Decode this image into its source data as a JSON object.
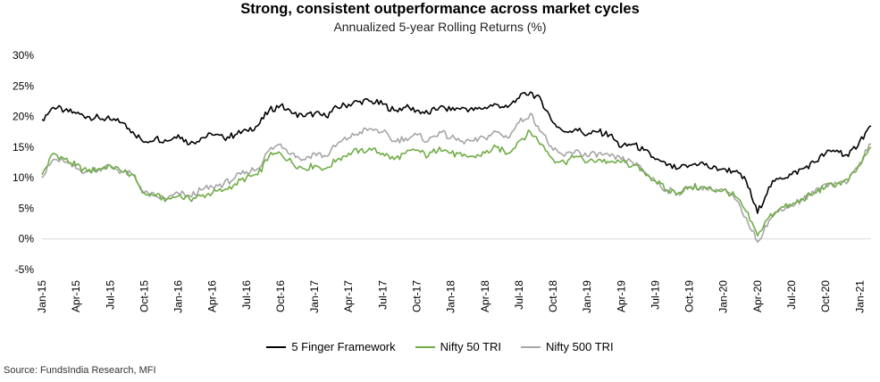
{
  "chart_data": {
    "type": "line",
    "title": "Strong, consistent  outperformance across market cycles",
    "subtitle": "Annualized 5-year Rolling Returns (%)",
    "source": "Source: FundsIndia Research, MFI",
    "ylim": [
      -5,
      30
    ],
    "y_ticks": [
      -5,
      0,
      5,
      10,
      15,
      20,
      25,
      30
    ],
    "y_tick_labels": [
      "-5%",
      "0%",
      "5%",
      "10%",
      "15%",
      "20%",
      "25%",
      "30%"
    ],
    "x_tick_labels": [
      "Jan-15",
      "Apr-15",
      "Jul-15",
      "Oct-15",
      "Jan-16",
      "Apr-16",
      "Jul-16",
      "Oct-16",
      "Jan-17",
      "Apr-17",
      "Jul-17",
      "Oct-17",
      "Jan-18",
      "Apr-18",
      "Jul-18",
      "Oct-18",
      "Jan-19",
      "Apr-19",
      "Jul-19",
      "Oct-19",
      "Jan-20",
      "Apr-20",
      "Jul-20",
      "Oct-20",
      "Jan-21"
    ],
    "legend_position": "bottom",
    "grid": false,
    "x": [
      "Jan-15",
      "Feb-15",
      "Mar-15",
      "Apr-15",
      "May-15",
      "Jun-15",
      "Jul-15",
      "Aug-15",
      "Sep-15",
      "Oct-15",
      "Nov-15",
      "Dec-15",
      "Jan-16",
      "Feb-16",
      "Mar-16",
      "Apr-16",
      "May-16",
      "Jun-16",
      "Jul-16",
      "Aug-16",
      "Sep-16",
      "Oct-16",
      "Nov-16",
      "Dec-16",
      "Jan-17",
      "Feb-17",
      "Mar-17",
      "Apr-17",
      "May-17",
      "Jun-17",
      "Jul-17",
      "Aug-17",
      "Sep-17",
      "Oct-17",
      "Nov-17",
      "Dec-17",
      "Jan-18",
      "Feb-18",
      "Mar-18",
      "Apr-18",
      "May-18",
      "Jun-18",
      "Jul-18",
      "Aug-18",
      "Sep-18",
      "Oct-18",
      "Nov-18",
      "Dec-18",
      "Jan-19",
      "Feb-19",
      "Mar-19",
      "Apr-19",
      "May-19",
      "Jun-19",
      "Jul-19",
      "Aug-19",
      "Sep-19",
      "Oct-19",
      "Nov-19",
      "Dec-19",
      "Jan-20",
      "Feb-20",
      "Mar-20",
      "Apr-20",
      "May-20",
      "Jun-20",
      "Jul-20",
      "Aug-20",
      "Sep-20",
      "Oct-20",
      "Nov-20",
      "Dec-20",
      "Jan-21",
      "Feb-21"
    ],
    "series": [
      {
        "name": "5 Finger Framework",
        "color": "#000000",
        "values": [
          19.5,
          21.5,
          21.0,
          20.5,
          20.0,
          19.8,
          19.5,
          19.0,
          17.5,
          15.8,
          16.5,
          16.0,
          17.0,
          15.5,
          16.5,
          17.0,
          16.5,
          17.0,
          17.8,
          18.5,
          21.0,
          21.8,
          20.5,
          20.0,
          20.5,
          20.0,
          21.5,
          22.0,
          22.5,
          22.5,
          22.0,
          21.0,
          21.5,
          21.0,
          20.5,
          21.5,
          21.0,
          21.5,
          21.0,
          21.5,
          22.0,
          21.5,
          23.0,
          24.0,
          22.5,
          19.0,
          17.5,
          18.0,
          17.0,
          17.5,
          17.0,
          15.0,
          15.5,
          14.5,
          13.0,
          12.0,
          11.5,
          12.0,
          12.5,
          11.5,
          11.5,
          11.0,
          9.5,
          4.2,
          8.5,
          10.0,
          10.5,
          11.5,
          12.5,
          14.0,
          14.5,
          13.5,
          16.0,
          18.5
        ]
      },
      {
        "name": "Nifty 50 TRI",
        "color": "#70ad47",
        "values": [
          10.5,
          14.0,
          13.0,
          12.0,
          11.0,
          11.5,
          12.0,
          11.0,
          10.5,
          7.5,
          7.0,
          6.5,
          7.0,
          6.5,
          7.0,
          7.5,
          8.0,
          9.0,
          10.0,
          10.5,
          13.5,
          14.0,
          12.5,
          11.5,
          12.0,
          11.5,
          13.0,
          14.0,
          14.5,
          14.5,
          14.0,
          13.0,
          14.0,
          14.5,
          13.5,
          15.0,
          14.0,
          13.5,
          13.5,
          14.0,
          15.0,
          14.0,
          16.0,
          17.5,
          15.5,
          13.0,
          12.5,
          13.5,
          12.5,
          13.0,
          12.5,
          12.5,
          12.0,
          11.0,
          9.5,
          8.0,
          7.5,
          8.5,
          8.5,
          8.0,
          8.0,
          7.0,
          4.5,
          0.5,
          3.5,
          5.0,
          5.5,
          6.5,
          7.5,
          8.5,
          9.0,
          9.5,
          12.0,
          15.0
        ]
      },
      {
        "name": "Nifty 500 TRI",
        "color": "#a6a6a6",
        "values": [
          10.0,
          13.0,
          12.5,
          11.5,
          11.0,
          11.5,
          12.0,
          11.0,
          10.5,
          7.5,
          7.0,
          6.5,
          7.5,
          7.0,
          8.0,
          8.5,
          9.0,
          10.0,
          11.0,
          11.5,
          14.5,
          15.5,
          14.0,
          13.0,
          14.0,
          13.5,
          15.5,
          16.5,
          17.5,
          18.0,
          17.5,
          16.0,
          16.5,
          17.0,
          16.0,
          17.5,
          16.5,
          16.0,
          16.0,
          16.5,
          17.5,
          16.5,
          19.0,
          20.5,
          17.5,
          14.5,
          13.5,
          14.5,
          13.5,
          14.0,
          13.5,
          13.0,
          12.5,
          11.0,
          9.5,
          8.0,
          7.5,
          8.5,
          8.5,
          8.0,
          8.0,
          6.5,
          3.5,
          -0.5,
          3.0,
          5.0,
          5.5,
          6.5,
          7.5,
          9.0,
          9.0,
          9.5,
          12.5,
          15.5
        ]
      }
    ]
  }
}
